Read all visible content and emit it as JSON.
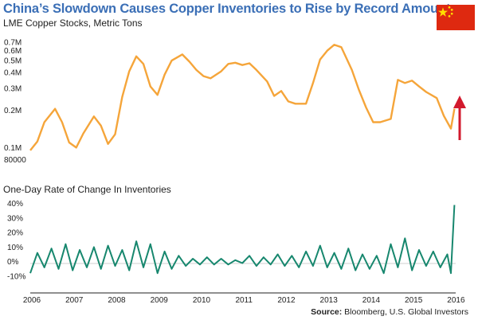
{
  "header": {
    "title": "China’s Slowdown Causes Copper Inventories to Rise by Record Amount",
    "subtitle": "LME Copper Stocks, Metric Tons",
    "lower_subtitle": "One-Day Rate of Change In Inventories",
    "source_label": "Source:",
    "source_text": "Bloomberg, U.S. Global Investors"
  },
  "colors": {
    "stocks_line": "#f5a53a",
    "change_line": "#17876e",
    "arrow": "#d2192d",
    "title": "#3b6fb6",
    "flag_red": "#de2910",
    "flag_star": "#ffde00"
  },
  "icons": {
    "flag": "china-flag-icon",
    "arrow": "up-arrow-icon"
  },
  "chart_data": [
    {
      "type": "line",
      "title": "China’s Slowdown Causes Copper Inventories to Rise by Record Amount",
      "subtitle": "LME Copper Stocks, Metric Tons",
      "y_scale": "log",
      "ylim": [
        75000,
        850000
      ],
      "y_ticks": [
        80000,
        100000,
        200000,
        300000,
        400000,
        500000,
        600000,
        700000
      ],
      "y_tick_labels": [
        "80000",
        "0.1M",
        "0.2M",
        "0.3M",
        "0.4M",
        "0.5M",
        "0.6M",
        "0.7M"
      ],
      "grid": false,
      "x": [
        "2006-01",
        "2006-03",
        "2006-05",
        "2006-08",
        "2006-10",
        "2006-12",
        "2007-02",
        "2007-04",
        "2007-07",
        "2007-09",
        "2007-11",
        "2008-01",
        "2008-03",
        "2008-05",
        "2008-07",
        "2008-09",
        "2008-11",
        "2009-01",
        "2009-03",
        "2009-05",
        "2009-08",
        "2009-10",
        "2009-12",
        "2010-02",
        "2010-04",
        "2010-07",
        "2010-09",
        "2010-11",
        "2011-01",
        "2011-03",
        "2011-05",
        "2011-08",
        "2011-10",
        "2011-12",
        "2012-02",
        "2012-04",
        "2012-07",
        "2012-09",
        "2012-11",
        "2013-01",
        "2013-03",
        "2013-05",
        "2013-08",
        "2013-10",
        "2013-12",
        "2014-02",
        "2014-04",
        "2014-07",
        "2014-09",
        "2014-11",
        "2015-01",
        "2015-03",
        "2015-05",
        "2015-08",
        "2015-10",
        "2015-12",
        "2016-01"
      ],
      "y": [
        95000,
        112000,
        160000,
        205000,
        160000,
        110000,
        100000,
        130000,
        178000,
        150000,
        107000,
        128000,
        255000,
        410000,
        540000,
        470000,
        310000,
        265000,
        385000,
        500000,
        560000,
        490000,
        420000,
        375000,
        360000,
        410000,
        470000,
        480000,
        460000,
        475000,
        420000,
        340000,
        260000,
        285000,
        235000,
        225000,
        225000,
        330000,
        510000,
        600000,
        670000,
        640000,
        420000,
        290000,
        210000,
        160000,
        160000,
        170000,
        350000,
        330000,
        345000,
        310000,
        280000,
        250000,
        180000,
        142000,
        205000
      ],
      "series": [
        {
          "name": "",
          "color": "#f5a53a"
        }
      ]
    },
    {
      "type": "line",
      "title": "One-Day Rate of Change In Inventories",
      "ylim": [
        -15,
        42
      ],
      "y_ticks": [
        -10,
        0,
        10,
        20,
        30,
        40
      ],
      "y_tick_labels": [
        "-10%",
        "0%",
        "10%",
        "20%",
        "30%",
        "40%"
      ],
      "x_ticks": [
        "2006",
        "2007",
        "2008",
        "2009",
        "2010",
        "2011",
        "2012",
        "2013",
        "2014",
        "2015",
        "2016"
      ],
      "grid": false,
      "x": [
        "2006-01",
        "2006-03",
        "2006-05",
        "2006-07",
        "2006-09",
        "2006-11",
        "2007-01",
        "2007-03",
        "2007-05",
        "2007-07",
        "2007-09",
        "2007-11",
        "2008-01",
        "2008-03",
        "2008-05",
        "2008-07",
        "2008-09",
        "2008-11",
        "2009-01",
        "2009-03",
        "2009-05",
        "2009-07",
        "2009-09",
        "2009-11",
        "2010-01",
        "2010-03",
        "2010-05",
        "2010-07",
        "2010-09",
        "2010-11",
        "2011-01",
        "2011-03",
        "2011-05",
        "2011-07",
        "2011-09",
        "2011-11",
        "2012-01",
        "2012-03",
        "2012-05",
        "2012-07",
        "2012-09",
        "2012-11",
        "2013-01",
        "2013-03",
        "2013-05",
        "2013-07",
        "2013-09",
        "2013-11",
        "2014-01",
        "2014-03",
        "2014-05",
        "2014-07",
        "2014-09",
        "2014-11",
        "2015-01",
        "2015-03",
        "2015-05",
        "2015-07",
        "2015-09",
        "2015-11",
        "2015-12",
        "2016-01"
      ],
      "y": [
        -8,
        6,
        -4,
        9,
        -5,
        12,
        -6,
        8,
        -4,
        10,
        -5,
        11,
        -3,
        8,
        -6,
        14,
        -4,
        12,
        -8,
        7,
        -5,
        4,
        -3,
        2,
        -2,
        3,
        -2,
        2,
        -2,
        1,
        -1,
        4,
        -3,
        3,
        -2,
        5,
        -3,
        4,
        -4,
        7,
        -3,
        11,
        -4,
        6,
        -5,
        9,
        -6,
        5,
        -5,
        4,
        -8,
        12,
        -4,
        16,
        -6,
        8,
        -3,
        7,
        -4,
        5,
        -8,
        39
      ],
      "series": [
        {
          "name": "",
          "color": "#17876e"
        }
      ]
    }
  ]
}
